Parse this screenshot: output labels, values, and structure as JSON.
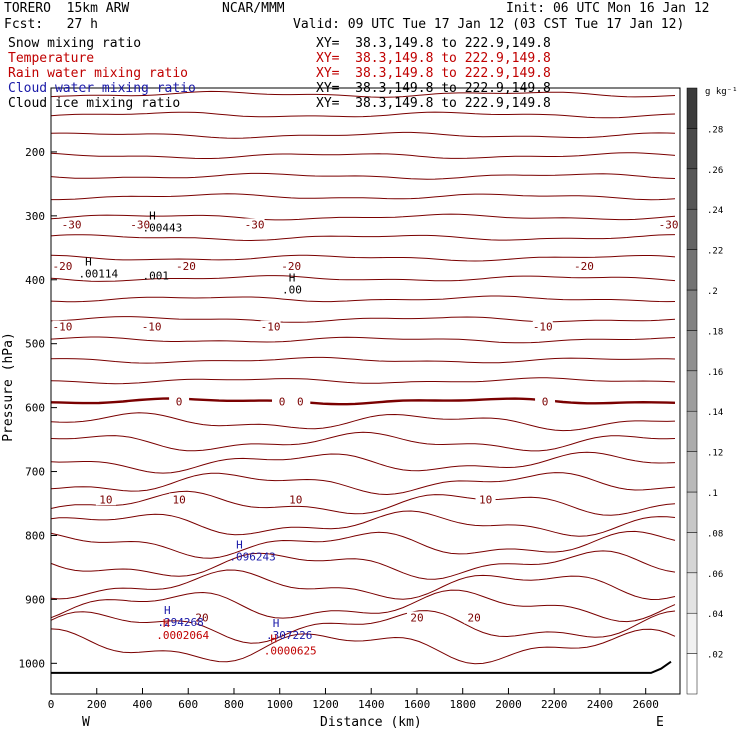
{
  "header": {
    "model": "TORERO  15km ARW",
    "center": "NCAR/MMM",
    "init": "Init: 06 UTC Mon 16 Jan 12",
    "fcst": "Fcst:   27 h",
    "valid": "Valid: 09 UTC Tue 17 Jan 12 (03 CST Tue 17 Jan 12)"
  },
  "fields": [
    {
      "name": "Snow mixing ratio",
      "xy": "XY=  38.3,149.8 to 222.9,149.8",
      "color": "#000000",
      "xy_color": "#000000"
    },
    {
      "name": "Temperature",
      "xy": "XY=  38.3,149.8 to 222.9,149.8",
      "color": "#c00000",
      "xy_color": "#c00000"
    },
    {
      "name": "Rain water mixing ratio",
      "xy": "XY=  38.3,149.8 to 222.9,149.8",
      "color": "#c00000",
      "xy_color": "#c00000"
    },
    {
      "name": "Cloud water mixing ratio",
      "xy": "XY=  38.3,149.8 to 222.9,149.8",
      "color": "#1a1aa8",
      "xy_color": "#000000"
    },
    {
      "name": "Cloud ice mixing ratio",
      "xy": "XY=  38.3,149.8 to 222.9,149.8",
      "color": "#000000",
      "xy_color": "#000000"
    }
  ],
  "chart_data": {
    "type": "cross-section",
    "xlabel": "Distance (km)",
    "ylabel": "Pressure (hPa)",
    "x_ticks": [
      0,
      200,
      400,
      600,
      800,
      1000,
      1200,
      1400,
      1600,
      1800,
      2000,
      2200,
      2400,
      2600
    ],
    "xlim": [
      0,
      2750
    ],
    "y_ticks": [
      200,
      300,
      400,
      500,
      600,
      700,
      800,
      900,
      1000
    ],
    "ylim": [
      100,
      1048
    ],
    "x_end_labels": {
      "left": "W",
      "right": "E"
    },
    "colorbar": {
      "unit": "g kg⁻¹",
      "ticks": [
        ".02",
        ".04",
        ".06",
        ".08",
        ".1",
        ".12",
        ".14",
        ".16",
        ".18",
        ".2",
        ".22",
        ".24",
        ".26",
        ".28"
      ],
      "range": [
        0,
        0.3
      ]
    },
    "temperature_contours": [
      {
        "label": "-30",
        "x": 90,
        "p": 315
      },
      {
        "label": "-30",
        "x": 390,
        "p": 315
      },
      {
        "label": "-30",
        "x": 890,
        "p": 315
      },
      {
        "label": "-30",
        "x": 2700,
        "p": 315
      },
      {
        "label": "-20",
        "x": 50,
        "p": 380
      },
      {
        "label": "-20",
        "x": 590,
        "p": 380
      },
      {
        "label": "-20",
        "x": 1050,
        "p": 380
      },
      {
        "label": "-20",
        "x": 2330,
        "p": 380
      },
      {
        "label": "-10",
        "x": 50,
        "p": 475
      },
      {
        "label": "-10",
        "x": 440,
        "p": 475
      },
      {
        "label": "-10",
        "x": 960,
        "p": 475
      },
      {
        "label": "-10",
        "x": 2150,
        "p": 475
      },
      {
        "label": "0",
        "x": 560,
        "p": 592
      },
      {
        "label": "0",
        "x": 1010,
        "p": 592
      },
      {
        "label": "0",
        "x": 1090,
        "p": 592
      },
      {
        "label": "0",
        "x": 2160,
        "p": 592
      },
      {
        "label": "10",
        "x": 240,
        "p": 745
      },
      {
        "label": "10",
        "x": 560,
        "p": 745
      },
      {
        "label": "10",
        "x": 1070,
        "p": 745
      },
      {
        "label": "10",
        "x": 1900,
        "p": 745
      },
      {
        "label": "20",
        "x": 660,
        "p": 930
      },
      {
        "label": "20",
        "x": 1600,
        "p": 930
      },
      {
        "label": "20",
        "x": 1850,
        "p": 930
      }
    ],
    "extrema": [
      {
        "label": "H",
        "value": ".00443",
        "x": 400,
        "p": 318,
        "color": "#000000"
      },
      {
        "label": "H",
        "value": ".00114",
        "x": 120,
        "p": 390,
        "color": "#000000"
      },
      {
        "label": "",
        "value": ".001",
        "x": 400,
        "p": 393,
        "color": "#000000"
      },
      {
        "label": "H",
        "value": ".00",
        "x": 1010,
        "p": 415,
        "color": "#000000"
      },
      {
        "label": "H",
        "value": ".096243",
        "x": 780,
        "p": 833,
        "color": "#1a1aa8"
      },
      {
        "label": "H",
        "value": ".294268",
        "x": 465,
        "p": 935,
        "color": "#1a1aa8"
      },
      {
        "label": "H",
        "value": ".0002064",
        "x": 460,
        "p": 956,
        "color": "#c00000"
      },
      {
        "label": "H",
        "value": ".307226",
        "x": 940,
        "p": 956,
        "color": "#1a1aa8"
      },
      {
        "label": "H",
        "value": ".0000625",
        "x": 930,
        "p": 980,
        "color": "#c00000"
      }
    ]
  }
}
